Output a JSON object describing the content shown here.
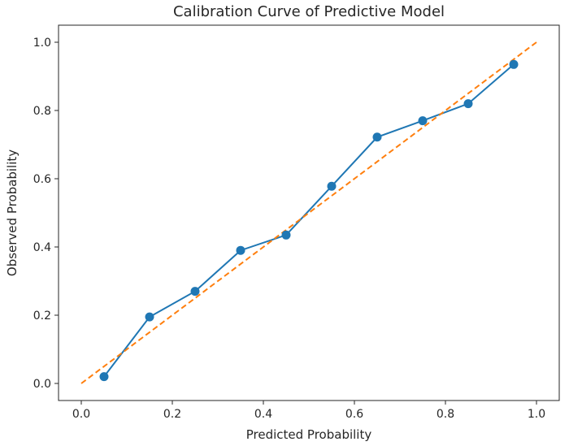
{
  "chart_data": {
    "type": "line",
    "title": "Calibration Curve of Predictive Model",
    "xlabel": "Predicted Probability",
    "ylabel": "Observed Probability",
    "xlim": [
      -0.05,
      1.05
    ],
    "ylim": [
      -0.05,
      1.05
    ],
    "x_ticks": [
      "0.0",
      "0.2",
      "0.4",
      "0.6",
      "0.8",
      "1.0"
    ],
    "y_ticks": [
      "0.0",
      "0.2",
      "0.4",
      "0.6",
      "0.8",
      "1.0"
    ],
    "grid": false,
    "series": [
      {
        "style": "solid line with circle markers",
        "color": "#1f77b4",
        "x": [
          0.05,
          0.15,
          0.25,
          0.35,
          0.45,
          0.55,
          0.65,
          0.75,
          0.85,
          0.95
        ],
        "y": [
          0.02,
          0.195,
          0.27,
          0.39,
          0.435,
          0.578,
          0.722,
          0.77,
          0.82,
          0.935
        ]
      },
      {
        "style": "dashed reference line",
        "color": "#ff7f0e",
        "x": [
          0.0,
          1.0
        ],
        "y": [
          0.0,
          1.0
        ]
      }
    ]
  }
}
